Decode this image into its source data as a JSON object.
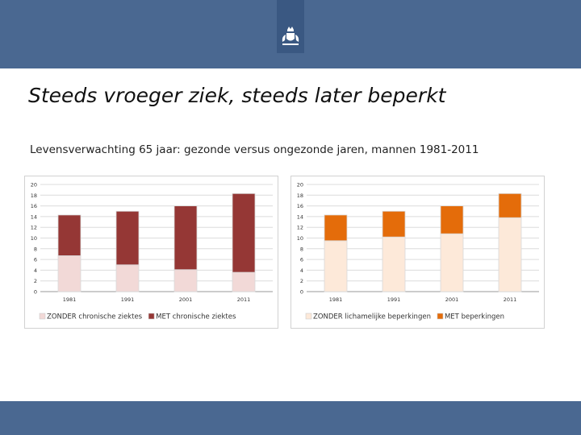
{
  "header": {
    "logo_icon": "coat-of-arms-icon",
    "bar_color": "#4a6891"
  },
  "slide": {
    "title": "Steeds vroeger ziek, steeds later beperkt",
    "subtitle": "Levensverwachting 65 jaar: gezonde versus ongezonde jaren, mannen 1981-2011"
  },
  "chart_data": [
    {
      "type": "bar",
      "stacked": true,
      "categories": [
        "1981",
        "1991",
        "2001",
        "2011"
      ],
      "series": [
        {
          "name": "ZONDER chronische ziektes",
          "values": [
            6.7,
            5.0,
            4.1,
            3.6
          ],
          "color": "#f2d9d7"
        },
        {
          "name": "MET chronische ziektes",
          "values": [
            7.6,
            10.0,
            11.9,
            14.7
          ],
          "color": "#953735"
        }
      ],
      "ylim": [
        0,
        20
      ],
      "yticks": [
        "0",
        "2",
        "4",
        "6",
        "8",
        "10",
        "12",
        "14",
        "16",
        "18",
        "20"
      ],
      "grid": true,
      "legend": "bottom"
    },
    {
      "type": "bar",
      "stacked": true,
      "categories": [
        "1981",
        "1991",
        "2001",
        "2011"
      ],
      "series": [
        {
          "name": "ZONDER lichamelijke beperkingen",
          "values": [
            9.5,
            10.2,
            10.8,
            13.8
          ],
          "color": "#fde9d9"
        },
        {
          "name": "MET beperkingen",
          "values": [
            4.8,
            4.8,
            5.2,
            4.5
          ],
          "color": "#e46c0a"
        }
      ],
      "ylim": [
        0,
        20
      ],
      "yticks": [
        "0",
        "2",
        "4",
        "6",
        "8",
        "10",
        "12",
        "14",
        "16",
        "18",
        "20"
      ],
      "grid": true,
      "legend": "bottom"
    }
  ]
}
